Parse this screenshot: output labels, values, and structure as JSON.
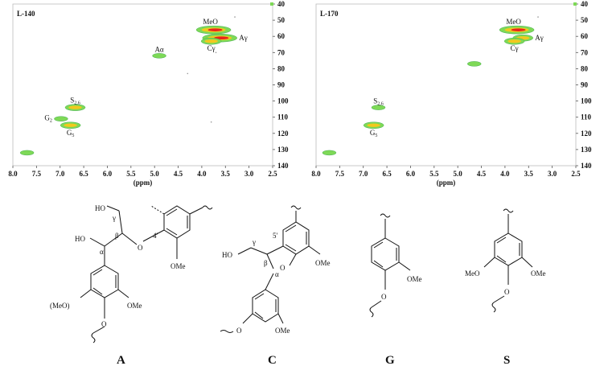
{
  "chart_data": [
    {
      "type": "heatmap",
      "title": "L-140",
      "xlabel": "(ppm)",
      "ylabel": "",
      "xlim": [
        8.0,
        2.5
      ],
      "ylim": [
        140,
        40
      ],
      "x_ticks": [
        "8.0",
        "7.5",
        "7.0",
        "6.5",
        "6.0",
        "5.5",
        "5.0",
        "4.5",
        "4.0",
        "3.5",
        "3.0",
        "2.5"
      ],
      "y_ticks": [
        "40",
        "50",
        "60",
        "70",
        "80",
        "90",
        "100",
        "110",
        "120",
        "130",
        "140"
      ],
      "peaks": [
        {
          "label": "MeO",
          "x": 3.75,
          "y": 56,
          "intensity": "high"
        },
        {
          "label": "Aγ",
          "x": 3.62,
          "y": 61,
          "intensity": "high"
        },
        {
          "label": "Cγ",
          "x": 3.8,
          "y": 63,
          "intensity": "medium"
        },
        {
          "label": "Aα",
          "x": 4.9,
          "y": 72,
          "intensity": "low"
        },
        {
          "label": "S2,6",
          "x": 6.68,
          "y": 104,
          "intensity": "medium"
        },
        {
          "label": "G2",
          "x": 6.98,
          "y": 111,
          "intensity": "low"
        },
        {
          "label": "G5",
          "x": 6.78,
          "y": 115,
          "intensity": "medium"
        },
        {
          "label": "",
          "x": 7.7,
          "y": 132,
          "intensity": "low"
        }
      ]
    },
    {
      "type": "heatmap",
      "title": "L-170",
      "xlabel": "(ppm)",
      "ylabel": "",
      "xlim": [
        8.0,
        2.5
      ],
      "ylim": [
        140,
        40
      ],
      "x_ticks": [
        "8.0",
        "7.5",
        "7.0",
        "6.5",
        "6.0",
        "5.5",
        "5.0",
        "4.5",
        "4.0",
        "3.5",
        "3.0",
        "2.5"
      ],
      "y_ticks": [
        "40",
        "50",
        "60",
        "70",
        "80",
        "90",
        "100",
        "110",
        "120",
        "130",
        "140"
      ],
      "peaks": [
        {
          "label": "MeO",
          "x": 3.75,
          "y": 56,
          "intensity": "high"
        },
        {
          "label": "Aγ",
          "x": 3.62,
          "y": 61,
          "intensity": "medium"
        },
        {
          "label": "Cγ",
          "x": 3.8,
          "y": 63,
          "intensity": "medium"
        },
        {
          "label": "",
          "x": 4.65,
          "y": 77,
          "intensity": "low"
        },
        {
          "label": "S2,6",
          "x": 6.68,
          "y": 104,
          "intensity": "low"
        },
        {
          "label": "G5",
          "x": 6.78,
          "y": 115,
          "intensity": "medium"
        },
        {
          "label": "",
          "x": 7.72,
          "y": 132,
          "intensity": "low"
        }
      ]
    }
  ],
  "structures": {
    "A": {
      "label": "A",
      "atoms": [
        "HO",
        "γ",
        "β",
        "HO",
        "α",
        "O",
        "4'",
        "OMe",
        "(MeO)",
        "OMe",
        "O"
      ]
    },
    "C": {
      "label": "C",
      "atoms": [
        "5'",
        "OMe",
        "HO",
        "γ",
        "β",
        "O",
        "α",
        "OMe",
        "O"
      ]
    },
    "G": {
      "label": "G",
      "atoms": [
        "OMe",
        "O"
      ]
    },
    "S": {
      "label": "S",
      "atoms": [
        "MeO",
        "OMe",
        "O"
      ]
    }
  },
  "colors": {
    "high": "#e8241c",
    "mid": "#f2c81e",
    "low": "#7ed957",
    "edge": "#2f9e44"
  }
}
